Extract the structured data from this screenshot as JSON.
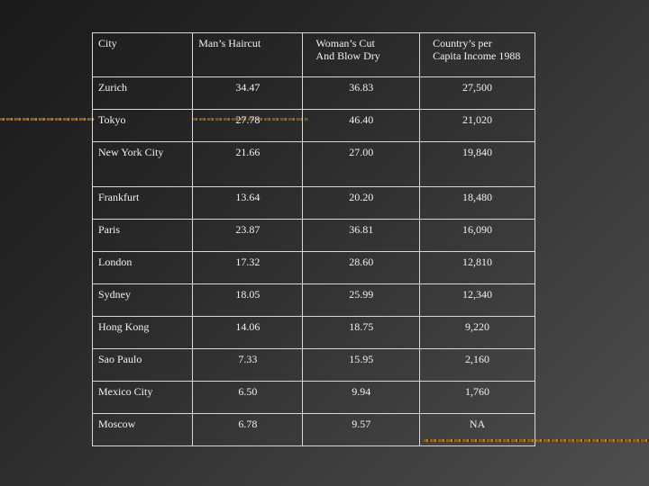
{
  "table": {
    "headers": [
      "City",
      "Man’s Haircut",
      "Woman’s Cut\nAnd Blow Dry",
      "Country’s per\nCapita Income 1988"
    ],
    "rows": [
      {
        "city": "Zurich",
        "man": "34.47",
        "woman": "36.83",
        "income": "27,500"
      },
      {
        "city": "Tokyo",
        "man": "27.78",
        "woman": "46.40",
        "income": "21,020"
      },
      {
        "city": "New York City",
        "man": "21.66",
        "woman": "27.00",
        "income": "19,840"
      },
      {
        "city": "Frankfurt",
        "man": "13.64",
        "woman": "20.20",
        "income": "18,480"
      },
      {
        "city": "Paris",
        "man": "23.87",
        "woman": "36.81",
        "income": "16,090"
      },
      {
        "city": "London",
        "man": "17.32",
        "woman": "28.60",
        "income": "12,810"
      },
      {
        "city": "Sydney",
        "man": "18.05",
        "woman": "25.99",
        "income": "12,340"
      },
      {
        "city": "Hong Kong",
        "man": "14.06",
        "woman": "18.75",
        "income": "9,220"
      },
      {
        "city": "Sao Paulo",
        "man": "7.33",
        "woman": "15.95",
        "income": "2,160"
      },
      {
        "city": "Mexico City",
        "man": "6.50",
        "woman": "9.94",
        "income": "1,760"
      },
      {
        "city": "Moscow",
        "man": "6.78",
        "woman": "9.57",
        "income": "NA"
      }
    ]
  },
  "colors": {
    "background_dark": "#1a1a1a",
    "background_light": "#4e4e4e",
    "text": "#f2f2f2",
    "grid": "#d8d8d8",
    "accent_bar": "#c48a2c"
  }
}
